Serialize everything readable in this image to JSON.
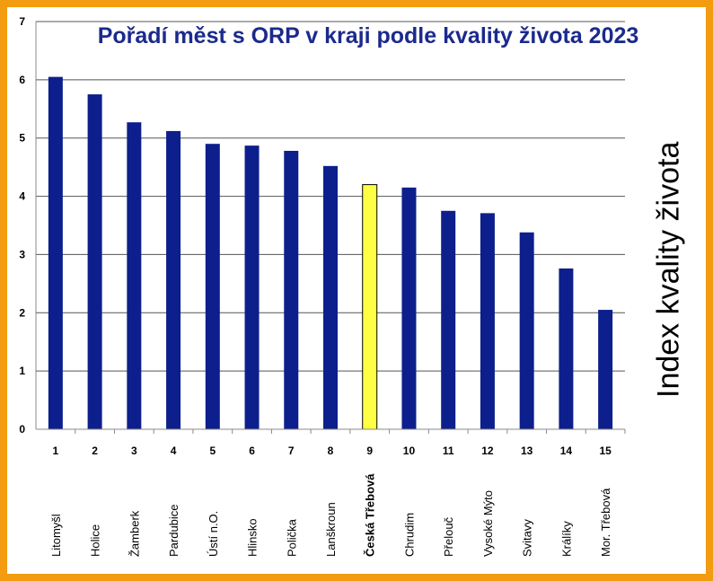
{
  "chart_data": {
    "type": "bar",
    "title": "Pořadí měst s ORP v kraji podle kvality života 2023",
    "ylabel": "Index kvality života",
    "ylim": [
      0,
      7
    ],
    "yticks": [
      0,
      1,
      2,
      3,
      4,
      5,
      6,
      7
    ],
    "ranks": [
      "1",
      "2",
      "3",
      "4",
      "5",
      "6",
      "7",
      "8",
      "9",
      "10",
      "11",
      "12",
      "13",
      "14",
      "15"
    ],
    "categories": [
      "Litomyšl",
      "Holice",
      "Žamberk",
      "Pardubice",
      "Ústí n.O.",
      "Hlinsko",
      "Polička",
      "Lanškroun",
      "Česká Třebová",
      "Chrudim",
      "Přelouč",
      "Vysoké Mýto",
      "Svitavy",
      "Králíky",
      "Mor. Třebová"
    ],
    "values": [
      6.05,
      5.75,
      5.27,
      5.12,
      4.9,
      4.87,
      4.78,
      4.52,
      4.2,
      4.15,
      3.75,
      3.71,
      3.38,
      2.76,
      2.05
    ],
    "highlight_index": 8,
    "grid": true,
    "colors": {
      "bar": "#0d1f8c",
      "highlight": "#ffff44",
      "highlight_label": "#e02020",
      "frame": "#f39c12",
      "title": "#1b2a8c"
    }
  }
}
